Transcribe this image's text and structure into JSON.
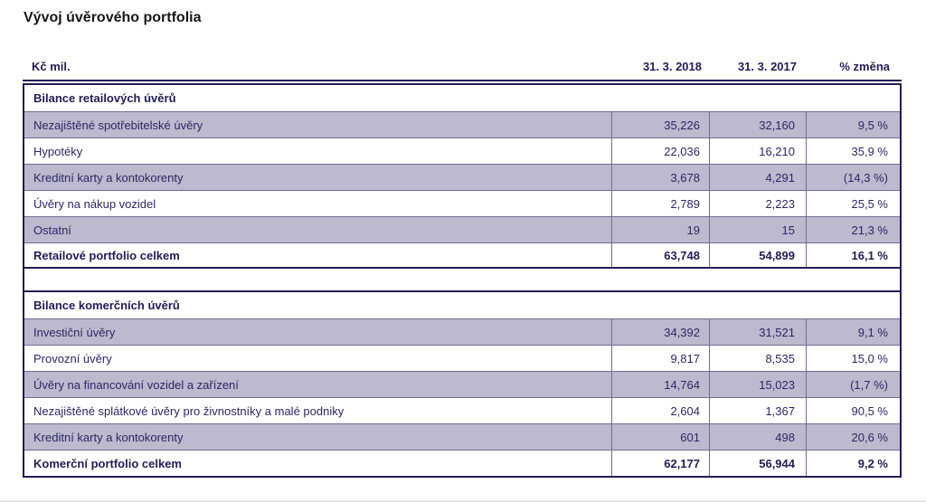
{
  "title": "Vývoj úvěrového portfolia",
  "colors": {
    "navy": "#211d56",
    "text": "#2b2766",
    "lavender": "#bdb9ce",
    "grid": "#716d96",
    "title_text": "#171717",
    "page_bg": "#ffffff",
    "faint_rule": "#e3e3e7"
  },
  "table": {
    "unit_label": "Kč mil.",
    "columns": [
      "31. 3. 2018",
      "31. 3. 2017",
      "% změna"
    ],
    "sections": [
      {
        "header": "Bilance retailových úvěrů",
        "rows": [
          {
            "label": "Nezajištěné spotřebitelské úvěry",
            "v2018": "35,226",
            "v2017": "32,160",
            "change": "9,5 %"
          },
          {
            "label": "Hypotéky",
            "v2018": "22,036",
            "v2017": "16,210",
            "change": "35,9 %"
          },
          {
            "label": "Kreditní karty a kontokorenty",
            "v2018": "3,678",
            "v2017": "4,291",
            "change": "(14,3 %)"
          },
          {
            "label": "Úvěry na nákup vozidel",
            "v2018": "2,789",
            "v2017": "2,223",
            "change": "25,5 %"
          },
          {
            "label": "Ostatní",
            "v2018": "19",
            "v2017": "15",
            "change": "21,3 %"
          }
        ],
        "total": {
          "label": "Retailové portfolio celkem",
          "v2018": "63,748",
          "v2017": "54,899",
          "change": "16,1 %"
        }
      },
      {
        "header": "Bilance komerčních úvěrů",
        "rows": [
          {
            "label": "Investiční úvěry",
            "v2018": "34,392",
            "v2017": "31,521",
            "change": "9,1 %"
          },
          {
            "label": "Provozní úvěry",
            "v2018": "9,817",
            "v2017": "8,535",
            "change": "15,0 %"
          },
          {
            "label": "Úvěry na financování vozidel a zařízení",
            "v2018": "14,764",
            "v2017": "15,023",
            "change": "(1,7 %)"
          },
          {
            "label": "Nezajištěné splátkové úvěry pro živnostníky a malé podniky",
            "v2018": "2,604",
            "v2017": "1,367",
            "change": "90,5 %"
          },
          {
            "label": "Kreditní karty a kontokorenty",
            "v2018": "601",
            "v2017": "498",
            "change": "20,6 %"
          }
        ],
        "total": {
          "label": "Komerční portfolio celkem",
          "v2018": "62,177",
          "v2017": "56,944",
          "change": "9,2 %"
        }
      }
    ]
  }
}
